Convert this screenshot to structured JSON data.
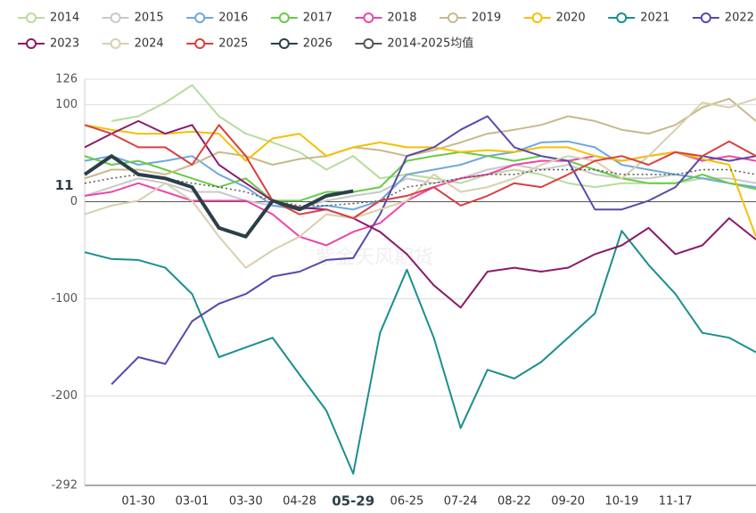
{
  "chart_data": {
    "type": "line",
    "watermark": "紫金天风期货",
    "categories": [
      null,
      null,
      "01-30",
      null,
      "03-01",
      null,
      "03-30",
      null,
      "04-28",
      null,
      "05-29",
      null,
      "06-25",
      null,
      "07-24",
      null,
      "08-22",
      null,
      "09-20",
      null,
      "10-19",
      null,
      "11-17",
      null,
      null,
      null
    ],
    "ylim": [
      -292,
      126
    ],
    "yticks": [
      -292,
      -200,
      -100,
      0,
      100,
      126
    ],
    "grid": true,
    "series": [
      {
        "name": "2014",
        "color": "#b8dc9e",
        "values": [
          null,
          83,
          88,
          102,
          120,
          88,
          70,
          61,
          51,
          33,
          47,
          24,
          28,
          24,
          19,
          28,
          33,
          28,
          19,
          15,
          19,
          19,
          19,
          24,
          19,
          15
        ]
      },
      {
        "name": "2015",
        "color": "#c8c8c8",
        "values": [
          6,
          15,
          24,
          19,
          10,
          10,
          1,
          -4,
          -6,
          1,
          6,
          10,
          24,
          19,
          24,
          33,
          38,
          33,
          38,
          28,
          24,
          24,
          28,
          24,
          24,
          19
        ]
      },
      {
        "name": "2016",
        "color": "#6fa8dc",
        "values": [
          42,
          47,
          38,
          42,
          47,
          28,
          15,
          -4,
          -8,
          -4,
          -8,
          1,
          28,
          33,
          38,
          47,
          51,
          61,
          62,
          56,
          38,
          33,
          28,
          24,
          19,
          15
        ]
      },
      {
        "name": "2017",
        "color": "#66cc44",
        "values": [
          47,
          38,
          42,
          33,
          24,
          15,
          24,
          1,
          1,
          10,
          10,
          15,
          42,
          47,
          51,
          47,
          42,
          47,
          42,
          33,
          24,
          19,
          19,
          28,
          19,
          13
        ]
      },
      {
        "name": "2018",
        "color": "#ee44aa",
        "values": [
          6,
          10,
          19,
          10,
          1,
          1,
          1,
          -13,
          -36,
          -45,
          -31,
          -22,
          1,
          15,
          24,
          28,
          38,
          42,
          42,
          47,
          42,
          47,
          51,
          42,
          47,
          42
        ]
      },
      {
        "name": "2019",
        "color": "#c8b98a",
        "values": [
          24,
          33,
          33,
          28,
          38,
          51,
          47,
          38,
          44,
          47,
          56,
          53,
          47,
          53,
          61,
          70,
          74,
          79,
          88,
          83,
          74,
          70,
          79,
          97,
          106,
          83
        ]
      },
      {
        "name": "2020",
        "color": "#f5c000",
        "values": [
          79,
          74,
          70,
          70,
          72,
          70,
          42,
          65,
          70,
          47,
          56,
          61,
          56,
          56,
          51,
          53,
          51,
          56,
          56,
          47,
          42,
          47,
          51,
          44,
          38,
          -36
        ]
      },
      {
        "name": "2021",
        "color": "#1a8f8f",
        "values": [
          -52,
          -59,
          -60,
          -68,
          -95,
          -160,
          -150,
          -140,
          -178,
          -215,
          -280,
          -135,
          -70,
          -140,
          -233,
          -173,
          -182,
          -165,
          -140,
          -115,
          -30,
          -65,
          -95,
          -135,
          -140,
          -155
        ]
      },
      {
        "name": "2022",
        "color": "#5a48aa",
        "values": [
          null,
          -188,
          -160,
          -167,
          -123,
          -105,
          -95,
          -77,
          -72,
          -60,
          -58,
          -13,
          47,
          56,
          74,
          88,
          56,
          47,
          42,
          -8,
          -8,
          1,
          15,
          47,
          42,
          47
        ]
      },
      {
        "name": "2023",
        "color": "#8b1a6b",
        "values": [
          56,
          70,
          83,
          70,
          79,
          38,
          19,
          1,
          -6,
          -8,
          -17,
          -31,
          -54,
          -86,
          -109,
          -72,
          -68,
          -72,
          -68,
          -54,
          -45,
          -27,
          -54,
          -45,
          -17,
          -39
        ]
      },
      {
        "name": "2024",
        "color": "#d8cfae",
        "values": [
          -13,
          -4,
          1,
          19,
          1,
          -36,
          -68,
          -50,
          -36,
          -13,
          -17,
          -8,
          1,
          28,
          10,
          15,
          24,
          38,
          47,
          42,
          24,
          47,
          74,
          102,
          97,
          106
        ]
      },
      {
        "name": "2025",
        "color": "#d94040",
        "values": [
          79,
          70,
          56,
          56,
          38,
          79,
          47,
          1,
          -13,
          -8,
          -17,
          1,
          6,
          15,
          -4,
          6,
          19,
          15,
          28,
          42,
          47,
          38,
          51,
          47,
          62,
          47
        ]
      },
      {
        "name": "2026",
        "color": "#2b3f4a",
        "values": [
          28,
          47,
          28,
          24,
          15,
          -27,
          -36,
          1,
          -8,
          6,
          11,
          null,
          null,
          null,
          null,
          null,
          null,
          null,
          null,
          null,
          null,
          null,
          null,
          null,
          null,
          null
        ]
      },
      {
        "name": "2014-2025均值",
        "color": "#888888",
        "dashed": true,
        "values": [
          19,
          24,
          28,
          24,
          19,
          15,
          10,
          1,
          -4,
          -4,
          -2,
          1,
          15,
          19,
          24,
          28,
          28,
          33,
          33,
          33,
          28,
          28,
          28,
          33,
          33,
          28
        ]
      }
    ]
  }
}
